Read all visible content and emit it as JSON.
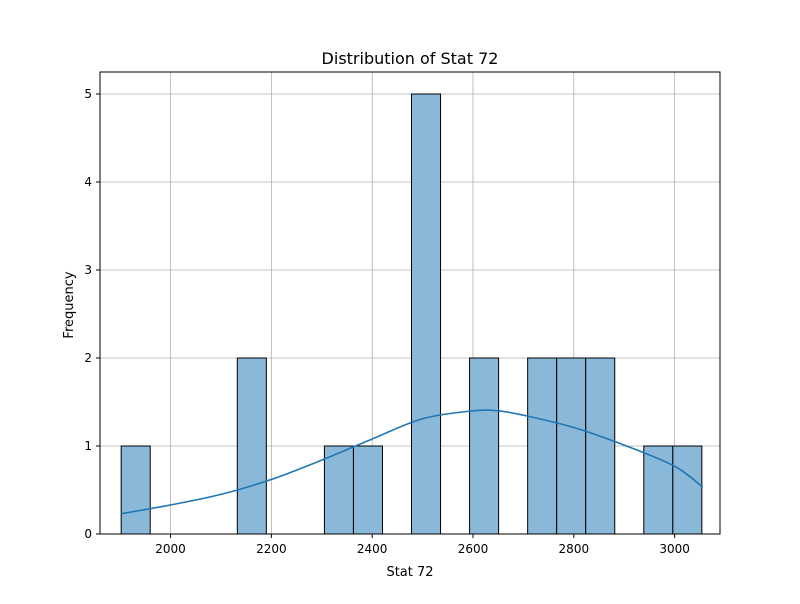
{
  "chart_data": {
    "type": "bar",
    "title": "Distribution of Stat 72",
    "xlabel": "Stat 72",
    "ylabel": "Frequency",
    "xlim": [
      1860,
      3090
    ],
    "ylim": [
      0,
      5.25
    ],
    "xticks": [
      2000,
      2200,
      2400,
      2600,
      2800,
      3000
    ],
    "yticks": [
      0,
      1,
      2,
      3,
      4,
      5
    ],
    "grid": true,
    "bin_width": 57.6,
    "bins": [
      {
        "start": 1902.0,
        "count": 1
      },
      {
        "start": 1959.6,
        "count": 0
      },
      {
        "start": 2017.2,
        "count": 0
      },
      {
        "start": 2074.8,
        "count": 0
      },
      {
        "start": 2132.4,
        "count": 2
      },
      {
        "start": 2190.0,
        "count": 0
      },
      {
        "start": 2247.6,
        "count": 0
      },
      {
        "start": 2305.2,
        "count": 1
      },
      {
        "start": 2362.8,
        "count": 1
      },
      {
        "start": 2420.4,
        "count": 0
      },
      {
        "start": 2478.0,
        "count": 5
      },
      {
        "start": 2535.6,
        "count": 0
      },
      {
        "start": 2593.2,
        "count": 2
      },
      {
        "start": 2650.8,
        "count": 0
      },
      {
        "start": 2708.4,
        "count": 2
      },
      {
        "start": 2766.0,
        "count": 2
      },
      {
        "start": 2823.6,
        "count": 2
      },
      {
        "start": 2881.2,
        "count": 0
      },
      {
        "start": 2938.8,
        "count": 1
      },
      {
        "start": 2996.4,
        "count": 1
      }
    ],
    "kde": {
      "x": [
        1902,
        2000,
        2100,
        2200,
        2300,
        2400,
        2500,
        2600,
        2650,
        2700,
        2800,
        2900,
        3000,
        3056
      ],
      "y": [
        0.23,
        0.33,
        0.45,
        0.62,
        0.84,
        1.08,
        1.31,
        1.4,
        1.4,
        1.35,
        1.21,
        1.01,
        0.77,
        0.53
      ]
    },
    "colors": {
      "bar_fill": "#8ab8d9",
      "bar_edge": "#000000",
      "kde_line": "#1f77b4",
      "grid": "#b0b0b0"
    }
  }
}
